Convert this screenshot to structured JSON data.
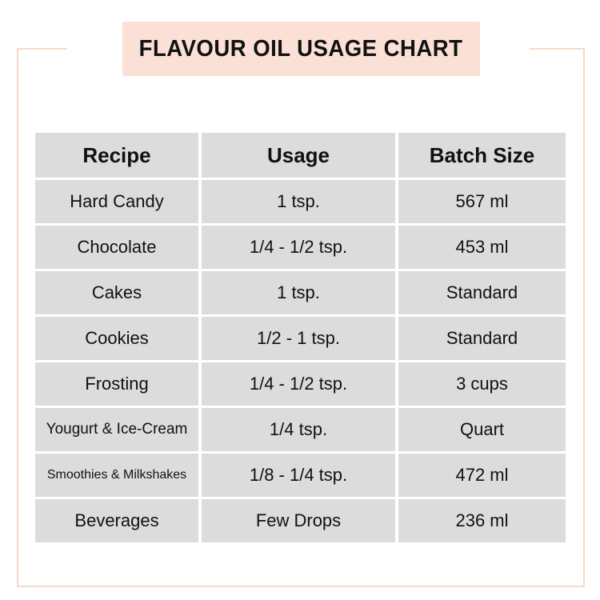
{
  "title": "FLAVOUR OIL USAGE CHART",
  "colors": {
    "accent": "#fbe0d6",
    "frame": "#f6d9cc",
    "cell": "#dcdcdc"
  },
  "table": {
    "headers": [
      "Recipe",
      "Usage",
      "Batch Size"
    ],
    "rows": [
      [
        "Hard Candy",
        "1 tsp.",
        "567 ml"
      ],
      [
        "Chocolate",
        "1/4 - 1/2 tsp.",
        "453 ml"
      ],
      [
        "Cakes",
        "1 tsp.",
        "Standard"
      ],
      [
        "Cookies",
        "1/2 - 1 tsp.",
        "Standard"
      ],
      [
        "Frosting",
        "1/4 - 1/2 tsp.",
        "3 cups"
      ],
      [
        "Yougurt & Ice-Cream",
        "1/4 tsp.",
        "Quart"
      ],
      [
        "Smoothies & Milkshakes",
        "1/8 - 1/4 tsp.",
        "472 ml"
      ],
      [
        "Beverages",
        "Few Drops",
        "236 ml"
      ]
    ]
  }
}
